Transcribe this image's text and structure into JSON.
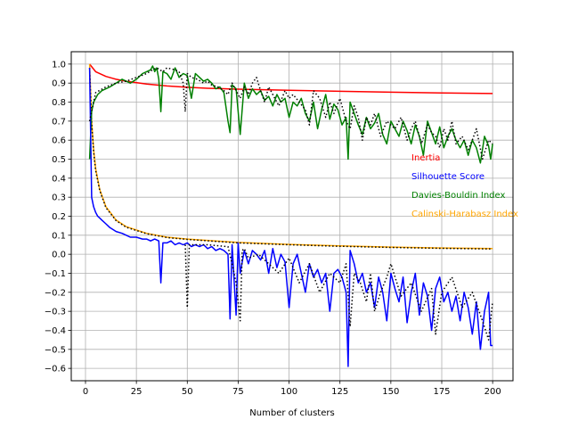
{
  "chart_data": {
    "type": "line",
    "title": "",
    "xlabel": "Number of clusters",
    "ylabel": "",
    "xlim": [
      -7,
      210
    ],
    "ylim": [
      -0.665,
      1.065
    ],
    "xticks": [
      0,
      25,
      50,
      75,
      100,
      125,
      150,
      175,
      200
    ],
    "xtick_labels": [
      "0",
      "25",
      "50",
      "75",
      "100",
      "125",
      "150",
      "175",
      "200"
    ],
    "yticks": [
      1.0,
      0.9,
      0.8,
      0.7,
      0.6,
      0.5,
      0.4,
      0.3,
      0.2,
      0.1,
      0.0,
      -0.1,
      -0.2,
      -0.3,
      -0.4,
      -0.5,
      -0.6
    ],
    "ytick_labels": [
      "1.0",
      "0.9",
      "0.8",
      "0.7",
      "0.6",
      "0.5",
      "0.4",
      "0.3",
      "0.2",
      "0.1",
      "0.0",
      "−0.1",
      "−0.2",
      "−0.3",
      "−0.4",
      "−0.5",
      "−0.6"
    ],
    "grid": true,
    "legend": "annotations-right",
    "series": [
      {
        "name": "Inertia",
        "color": "#ff0000",
        "x": [
          2,
          5,
          10,
          15,
          20,
          30,
          40,
          50,
          60,
          75,
          100,
          125,
          150,
          175,
          200
        ],
        "y": [
          1.0,
          0.96,
          0.935,
          0.92,
          0.91,
          0.895,
          0.885,
          0.878,
          0.873,
          0.868,
          0.862,
          0.857,
          0.852,
          0.848,
          0.845
        ]
      },
      {
        "name": "Calinski-Harabasz Index",
        "color": "#ffa500",
        "x": [
          2,
          3,
          4,
          5,
          7,
          10,
          15,
          20,
          30,
          40,
          50,
          75,
          100,
          125,
          150,
          175,
          200
        ],
        "y": [
          1.0,
          0.7,
          0.55,
          0.45,
          0.34,
          0.25,
          0.18,
          0.145,
          0.11,
          0.09,
          0.08,
          0.062,
          0.052,
          0.044,
          0.038,
          0.033,
          0.03
        ]
      },
      {
        "name": "",
        "color": "#000000",
        "style": "dotted",
        "x": [
          2,
          3,
          4,
          5,
          7,
          10,
          15,
          20,
          30,
          40,
          50,
          75,
          100,
          125,
          150,
          175,
          200
        ],
        "y": [
          0.98,
          0.69,
          0.54,
          0.44,
          0.335,
          0.245,
          0.177,
          0.142,
          0.108,
          0.088,
          0.078,
          0.06,
          0.05,
          0.042,
          0.036,
          0.031,
          0.028
        ]
      },
      {
        "name": "Davies-Bouldin Index",
        "color": "#008000",
        "x": [
          2,
          3,
          4,
          5,
          6,
          7,
          8,
          10,
          12,
          15,
          18,
          20,
          22,
          25,
          28,
          30,
          32,
          33,
          34,
          35,
          36,
          37,
          38,
          40,
          42,
          44,
          46,
          48,
          50,
          52,
          54,
          56,
          58,
          60,
          62,
          64,
          66,
          68,
          70,
          71,
          72,
          74,
          76,
          78,
          80,
          82,
          84,
          86,
          88,
          90,
          92,
          94,
          96,
          98,
          100,
          102,
          104,
          106,
          108,
          110,
          112,
          114,
          116,
          118,
          120,
          122,
          124,
          126,
          128,
          129,
          130,
          132,
          134,
          136,
          138,
          140,
          142,
          144,
          146,
          148,
          150,
          152,
          154,
          156,
          158,
          160,
          162,
          164,
          166,
          168,
          170,
          172,
          174,
          176,
          178,
          180,
          182,
          184,
          186,
          188,
          190,
          192,
          194,
          196,
          198,
          199,
          200
        ],
        "y": [
          0.5,
          0.75,
          0.8,
          0.82,
          0.84,
          0.85,
          0.86,
          0.87,
          0.88,
          0.9,
          0.92,
          0.91,
          0.9,
          0.92,
          0.95,
          0.96,
          0.97,
          0.99,
          0.96,
          0.98,
          0.92,
          0.75,
          0.96,
          0.95,
          0.92,
          0.98,
          0.93,
          0.95,
          0.94,
          0.82,
          0.95,
          0.93,
          0.91,
          0.92,
          0.9,
          0.87,
          0.88,
          0.85,
          0.7,
          0.64,
          0.89,
          0.87,
          0.63,
          0.9,
          0.82,
          0.87,
          0.84,
          0.86,
          0.81,
          0.83,
          0.78,
          0.84,
          0.8,
          0.82,
          0.72,
          0.8,
          0.78,
          0.82,
          0.74,
          0.7,
          0.8,
          0.66,
          0.76,
          0.84,
          0.71,
          0.79,
          0.76,
          0.68,
          0.72,
          0.5,
          0.8,
          0.74,
          0.68,
          0.63,
          0.72,
          0.66,
          0.69,
          0.74,
          0.63,
          0.58,
          0.7,
          0.66,
          0.62,
          0.7,
          0.65,
          0.58,
          0.68,
          0.62,
          0.52,
          0.7,
          0.64,
          0.58,
          0.67,
          0.56,
          0.62,
          0.66,
          0.6,
          0.56,
          0.6,
          0.52,
          0.6,
          0.56,
          0.48,
          0.62,
          0.57,
          0.5,
          0.58
        ]
      },
      {
        "name": "Silhouette Score",
        "color": "#0000ff",
        "x": [
          2,
          3,
          4,
          5,
          6,
          7,
          8,
          10,
          12,
          15,
          18,
          20,
          22,
          25,
          28,
          30,
          32,
          34,
          36,
          37,
          38,
          40,
          42,
          44,
          46,
          48,
          50,
          52,
          54,
          56,
          58,
          60,
          62,
          64,
          66,
          68,
          70,
          71,
          72,
          74,
          75,
          76,
          78,
          80,
          82,
          84,
          86,
          88,
          90,
          92,
          94,
          96,
          98,
          100,
          102,
          104,
          106,
          108,
          110,
          112,
          114,
          116,
          118,
          120,
          122,
          124,
          126,
          128,
          129,
          130,
          132,
          134,
          136,
          138,
          140,
          142,
          144,
          146,
          148,
          150,
          152,
          154,
          156,
          158,
          160,
          162,
          164,
          166,
          168,
          170,
          172,
          174,
          176,
          178,
          180,
          182,
          184,
          186,
          188,
          190,
          192,
          194,
          196,
          198,
          199,
          200
        ],
        "y": [
          0.98,
          0.3,
          0.25,
          0.22,
          0.2,
          0.19,
          0.18,
          0.16,
          0.14,
          0.12,
          0.11,
          0.1,
          0.09,
          0.09,
          0.08,
          0.08,
          0.07,
          0.08,
          0.07,
          -0.15,
          0.06,
          0.06,
          0.07,
          0.05,
          0.06,
          0.05,
          0.06,
          0.04,
          0.05,
          0.04,
          0.05,
          0.03,
          0.04,
          0.02,
          0.03,
          0.02,
          0.0,
          -0.34,
          0.05,
          -0.32,
          0.06,
          -0.1,
          0.02,
          -0.05,
          0.02,
          0.0,
          -0.03,
          0.02,
          -0.1,
          0.03,
          -0.07,
          0.0,
          -0.04,
          -0.28,
          -0.05,
          0.0,
          -0.1,
          -0.2,
          -0.05,
          -0.12,
          -0.08,
          -0.15,
          -0.1,
          -0.3,
          -0.1,
          -0.08,
          -0.12,
          -0.2,
          -0.59,
          0.02,
          -0.05,
          -0.15,
          -0.1,
          -0.2,
          -0.15,
          -0.28,
          -0.12,
          -0.2,
          -0.35,
          -0.1,
          -0.18,
          -0.25,
          -0.12,
          -0.36,
          -0.2,
          -0.1,
          -0.32,
          -0.15,
          -0.22,
          -0.4,
          -0.18,
          -0.12,
          -0.25,
          -0.2,
          -0.3,
          -0.22,
          -0.35,
          -0.2,
          -0.28,
          -0.42,
          -0.25,
          -0.5,
          -0.3,
          -0.2,
          -0.48,
          -0.48
        ]
      },
      {
        "name": "",
        "color": "#000000",
        "style": "dotted",
        "x": [
          2,
          5,
          10,
          15,
          20,
          25,
          30,
          33,
          35,
          38,
          40,
          44,
          46,
          48,
          49,
          50,
          52,
          55,
          58,
          60,
          62,
          65,
          68,
          70,
          72,
          74,
          76,
          78,
          80,
          82,
          84,
          86,
          88,
          90,
          92,
          95,
          98,
          100,
          102,
          105,
          108,
          110,
          112,
          115,
          118,
          120,
          122,
          125,
          128,
          130,
          132,
          134,
          136,
          138,
          140,
          142,
          145,
          148,
          150,
          152,
          155,
          158,
          160,
          162,
          165,
          168,
          170,
          172,
          174,
          176,
          178,
          180,
          182,
          185,
          188,
          190,
          192,
          195,
          198,
          200
        ],
        "y": [
          0.7,
          0.85,
          0.88,
          0.9,
          0.91,
          0.93,
          0.95,
          0.97,
          0.98,
          0.96,
          0.98,
          0.97,
          0.96,
          0.9,
          0.75,
          0.95,
          0.93,
          0.92,
          0.9,
          0.91,
          0.89,
          0.88,
          0.86,
          0.84,
          0.9,
          0.86,
          0.82,
          0.88,
          0.84,
          0.9,
          0.93,
          0.86,
          0.8,
          0.88,
          0.84,
          0.78,
          0.86,
          0.82,
          0.84,
          0.8,
          0.76,
          0.68,
          0.86,
          0.82,
          0.72,
          0.8,
          0.74,
          0.82,
          0.7,
          0.66,
          0.78,
          0.72,
          0.6,
          0.72,
          0.68,
          0.74,
          0.62,
          0.7,
          0.68,
          0.66,
          0.72,
          0.6,
          0.66,
          0.7,
          0.58,
          0.68,
          0.64,
          0.62,
          0.56,
          0.66,
          0.6,
          0.7,
          0.58,
          0.62,
          0.55,
          0.6,
          0.66,
          0.5,
          0.6,
          0.58
        ]
      },
      {
        "name": "",
        "color": "#000000",
        "style": "dotted",
        "x": [
          49,
          50,
          51,
          60,
          70,
          72,
          74,
          76,
          77,
          78,
          80,
          85,
          90,
          95,
          100,
          105,
          110,
          115,
          120,
          125,
          128,
          130,
          132,
          135,
          138,
          140,
          142,
          145,
          148,
          150,
          155,
          160,
          165,
          170,
          172,
          175,
          180,
          185,
          190,
          195,
          198,
          200
        ],
        "y": [
          0.05,
          -0.28,
          0.05,
          0.05,
          0.04,
          -0.05,
          -0.15,
          -0.35,
          0.02,
          0.03,
          -0.02,
          0.0,
          -0.05,
          -0.1,
          -0.02,
          -0.15,
          -0.05,
          -0.2,
          -0.1,
          -0.15,
          -0.05,
          -0.38,
          -0.1,
          -0.15,
          -0.25,
          -0.1,
          -0.3,
          -0.2,
          -0.12,
          -0.05,
          -0.22,
          -0.15,
          -0.3,
          -0.18,
          -0.42,
          -0.2,
          -0.12,
          -0.28,
          -0.2,
          -0.35,
          -0.45,
          -0.25
        ]
      }
    ],
    "legend_entries": [
      {
        "label": "Inertia",
        "color": "#ff0000"
      },
      {
        "label": "Silhouette Score",
        "color": "#0000ff"
      },
      {
        "label": "Davies-Bouldin Index",
        "color": "#008000"
      },
      {
        "label": "Calinski-Harabasz Index",
        "color": "#ffa500"
      }
    ]
  }
}
